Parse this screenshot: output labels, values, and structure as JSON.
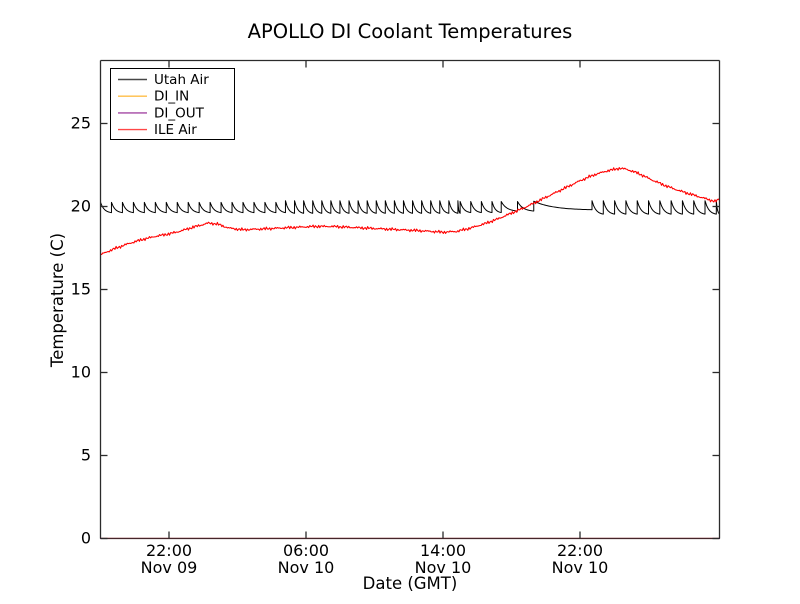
{
  "chart_data": {
    "type": "line",
    "title": "APOLLO DI Coolant Temperatures",
    "xlabel": "Date (GMT)",
    "ylabel": "Temperature (C)",
    "grid": false,
    "x_axis": {
      "unit": "hours since 18:00 GMT Nov 09",
      "min": 0,
      "max": 36.15,
      "ticks": [
        {
          "t": 4,
          "time": "22:00",
          "date": "Nov 09"
        },
        {
          "t": 12,
          "time": "06:00",
          "date": "Nov 10"
        },
        {
          "t": 20,
          "time": "14:00",
          "date": "Nov 10"
        },
        {
          "t": 28,
          "time": "22:00",
          "date": "Nov 10"
        }
      ]
    },
    "y_axis": {
      "min": 0,
      "max": 28.85,
      "ticks": [
        {
          "v": 0,
          "label": "0"
        },
        {
          "v": 5,
          "label": "5"
        },
        {
          "v": 10,
          "label": "10"
        },
        {
          "v": 15,
          "label": "15"
        },
        {
          "v": 20,
          "label": "20"
        },
        {
          "v": 25,
          "label": "25"
        }
      ]
    },
    "legend": {
      "position": "upper-left",
      "entries": [
        "Utah Air",
        "DI_IN",
        "DI_OUT",
        "ILE Air"
      ]
    },
    "series": [
      {
        "name": "Utah Air",
        "color": "#000000",
        "shape": "sawtooth",
        "sawtooth_segments": [
          {
            "t0": 0,
            "t1": 10.8,
            "period": 0.64,
            "trough": 19.6,
            "peak": 20.25
          },
          {
            "t0": 10.8,
            "t1": 21.0,
            "period": 0.53,
            "trough": 19.55,
            "peak": 20.35
          },
          {
            "t0": 21.0,
            "t1": 23.4,
            "period": 0.62,
            "trough": 19.6,
            "peak": 20.3
          },
          {
            "t0": 23.4,
            "t1": 25.3,
            "period": 0.95,
            "trough": 19.7,
            "peak": 20.3
          },
          {
            "t0": 25.3,
            "t1": 28.7,
            "period": 3.4,
            "trough": 19.78,
            "peak": 20.32
          },
          {
            "t0": 28.7,
            "t1": 36.15,
            "period": 0.66,
            "trough": 19.5,
            "peak": 20.35
          }
        ]
      },
      {
        "name": "DI_IN",
        "color": "#ffa500",
        "shape": "constant",
        "value": 0.0
      },
      {
        "name": "DI_OUT",
        "color": "#800080",
        "shape": "constant",
        "value": 0.0
      },
      {
        "name": "ILE Air",
        "color": "#ff0000",
        "shape": "keypoints",
        "noise_amplitude": 0.05,
        "points": [
          [
            0,
            17.1
          ],
          [
            0.8,
            17.45
          ],
          [
            1.6,
            17.75
          ],
          [
            2.4,
            18.0
          ],
          [
            3.2,
            18.2
          ],
          [
            4.0,
            18.35
          ],
          [
            4.6,
            18.5
          ],
          [
            5.4,
            18.75
          ],
          [
            6.3,
            19.0
          ],
          [
            6.8,
            18.95
          ],
          [
            7.5,
            18.7
          ],
          [
            8.3,
            18.6
          ],
          [
            9.5,
            18.65
          ],
          [
            10.5,
            18.7
          ],
          [
            11.5,
            18.75
          ],
          [
            12.5,
            18.8
          ],
          [
            13.5,
            18.8
          ],
          [
            14.5,
            18.75
          ],
          [
            15.5,
            18.7
          ],
          [
            16.5,
            18.65
          ],
          [
            17.5,
            18.6
          ],
          [
            18.5,
            18.55
          ],
          [
            19.3,
            18.5
          ],
          [
            20.0,
            18.45
          ],
          [
            20.8,
            18.5
          ],
          [
            21.6,
            18.7
          ],
          [
            22.4,
            18.95
          ],
          [
            23.2,
            19.25
          ],
          [
            24.0,
            19.6
          ],
          [
            24.8,
            19.95
          ],
          [
            25.6,
            20.35
          ],
          [
            26.4,
            20.75
          ],
          [
            27.2,
            21.15
          ],
          [
            28.0,
            21.55
          ],
          [
            28.8,
            21.9
          ],
          [
            29.6,
            22.15
          ],
          [
            30.3,
            22.3
          ],
          [
            30.7,
            22.25
          ],
          [
            31.4,
            22.0
          ],
          [
            32.2,
            21.6
          ],
          [
            33.0,
            21.25
          ],
          [
            33.8,
            20.95
          ],
          [
            34.6,
            20.7
          ],
          [
            35.4,
            20.45
          ],
          [
            35.9,
            20.3
          ],
          [
            36.15,
            20.45
          ]
        ]
      }
    ]
  },
  "axes_style": {
    "spine_color": "#2b2b2b",
    "bottom_spine_color": "#45252a",
    "tick_color": "#2b2b2b"
  }
}
